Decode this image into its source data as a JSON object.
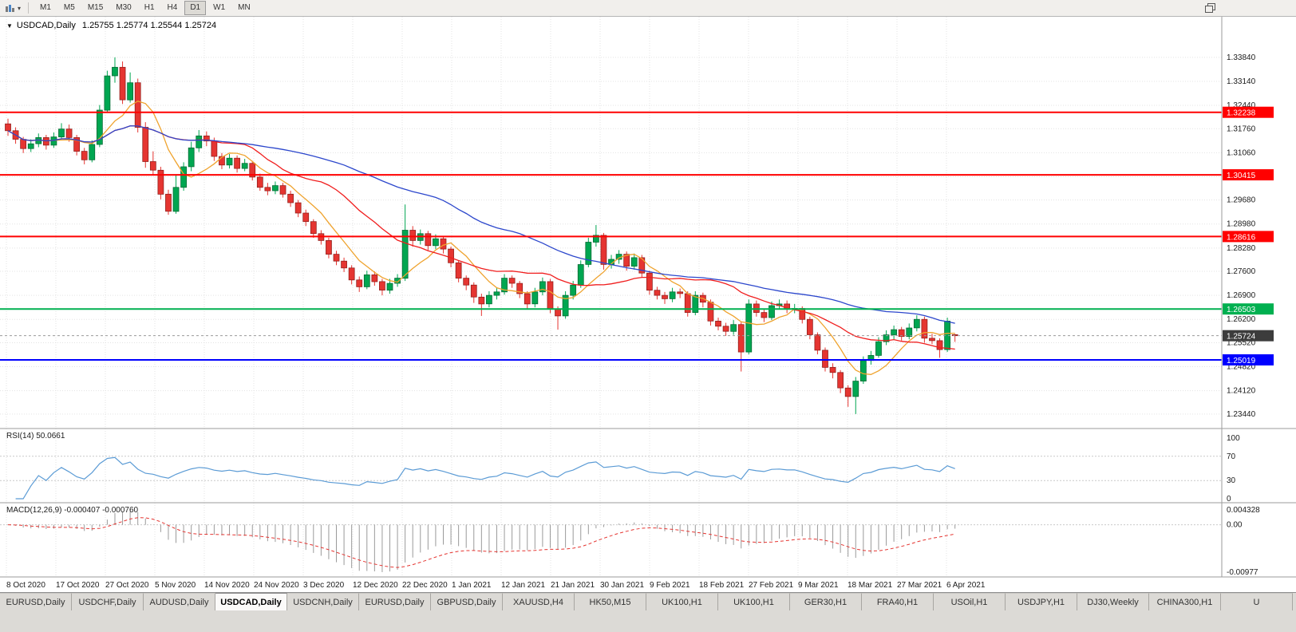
{
  "toolbar": {
    "timeframes": [
      {
        "label": "M1",
        "active": false
      },
      {
        "label": "M5",
        "active": false
      },
      {
        "label": "M15",
        "active": false
      },
      {
        "label": "M30",
        "active": false
      },
      {
        "label": "H1",
        "active": false
      },
      {
        "label": "H4",
        "active": false
      },
      {
        "label": "D1",
        "active": true
      },
      {
        "label": "W1",
        "active": false
      },
      {
        "label": "MN",
        "active": false
      }
    ]
  },
  "chart": {
    "window_menu_icon": "▼",
    "symbol": "USDCAD,Daily",
    "ohlc_text": "1.25755 1.25774 1.25544 1.25724",
    "levels": [
      {
        "price": 1.32238,
        "label": "1.32238",
        "color": "#ff0000"
      },
      {
        "price": 1.30415,
        "label": "1.30415",
        "color": "#ff0000"
      },
      {
        "price": 1.28616,
        "label": "1.28616",
        "color": "#ff0000"
      },
      {
        "price": 1.26503,
        "label": "1.26503",
        "color": "#00b050"
      },
      {
        "price": 1.25019,
        "label": "1.25019",
        "color": "#0000ff"
      }
    ],
    "current_price": {
      "value": 1.25724,
      "label": "1.25724",
      "color": "#3c3c3c"
    }
  },
  "chart_data": {
    "type": "candlestick",
    "symbol": "USDCAD",
    "timeframe": "Daily",
    "title": "USDCAD,Daily",
    "y_range": [
      1.2304,
      1.35
    ],
    "y_tick_labels": [
      "1.33840",
      "1.33140",
      "1.32440",
      "1.31760",
      "1.31060",
      "1.30360",
      "1.29680",
      "1.28980",
      "1.28280",
      "1.27600",
      "1.26900",
      "1.26200",
      "1.25520",
      "1.24820",
      "1.24120",
      "1.23440"
    ],
    "x_labels": [
      "8 Oct 2020",
      "17 Oct 2020",
      "27 Oct 2020",
      "5 Nov 2020",
      "14 Nov 2020",
      "24 Nov 2020",
      "3 Dec 2020",
      "12 Dec 2020",
      "22 Dec 2020",
      "1 Jan 2021",
      "12 Jan 2021",
      "21 Jan 2021",
      "30 Jan 2021",
      "9 Feb 2021",
      "18 Feb 2021",
      "27 Feb 2021",
      "9 Mar 2021",
      "18 Mar 2021",
      "27 Mar 2021",
      "6 Apr 2021"
    ],
    "moving_averages": [
      {
        "name": "fast-ma",
        "period": 7,
        "color": "#efa32e"
      },
      {
        "name": "medium-ma",
        "period": 20,
        "color": "#f01e1e"
      },
      {
        "name": "slow-ma",
        "period": 45,
        "color": "#2c47cc"
      }
    ],
    "candles": [
      [
        1.319,
        1.3205,
        1.3155,
        1.317
      ],
      [
        1.317,
        1.318,
        1.3132,
        1.3145
      ],
      [
        1.3145,
        1.3152,
        1.3105,
        1.3118
      ],
      [
        1.3118,
        1.3145,
        1.3108,
        1.3132
      ],
      [
        1.3132,
        1.3162,
        1.3122,
        1.315
      ],
      [
        1.315,
        1.3158,
        1.3115,
        1.3128
      ],
      [
        1.3128,
        1.3165,
        1.312,
        1.3152
      ],
      [
        1.3152,
        1.3192,
        1.3145,
        1.3175
      ],
      [
        1.3175,
        1.3188,
        1.3138,
        1.315
      ],
      [
        1.315,
        1.3158,
        1.3098,
        1.311
      ],
      [
        1.311,
        1.312,
        1.3072,
        1.3085
      ],
      [
        1.3085,
        1.3142,
        1.3078,
        1.313
      ],
      [
        1.313,
        1.3245,
        1.3122,
        1.323
      ],
      [
        1.323,
        1.3345,
        1.3222,
        1.333
      ],
      [
        1.333,
        1.3384,
        1.331,
        1.3355
      ],
      [
        1.3355,
        1.3372,
        1.3248,
        1.326
      ],
      [
        1.326,
        1.334,
        1.3252,
        1.331
      ],
      [
        1.331,
        1.3322,
        1.3165,
        1.318
      ],
      [
        1.318,
        1.3195,
        1.3062,
        1.308
      ],
      [
        1.308,
        1.311,
        1.304,
        1.3055
      ],
      [
        1.3055,
        1.3065,
        1.297,
        1.2985
      ],
      [
        1.2985,
        1.2998,
        1.2925,
        1.2935
      ],
      [
        1.2935,
        1.3042,
        1.2928,
        1.3005
      ],
      [
        1.3005,
        1.3078,
        1.2995,
        1.3065
      ],
      [
        1.3065,
        1.3138,
        1.3052,
        1.312
      ],
      [
        1.312,
        1.3172,
        1.3108,
        1.3155
      ],
      [
        1.3155,
        1.3168,
        1.3125,
        1.314
      ],
      [
        1.314,
        1.315,
        1.3082,
        1.3095
      ],
      [
        1.3095,
        1.3105,
        1.3058,
        1.307
      ],
      [
        1.307,
        1.3102,
        1.306,
        1.309
      ],
      [
        1.309,
        1.3098,
        1.3048,
        1.306
      ],
      [
        1.306,
        1.3088,
        1.3052,
        1.3075
      ],
      [
        1.3075,
        1.3082,
        1.3025,
        1.3035
      ],
      [
        1.3035,
        1.3045,
        1.2995,
        1.3005
      ],
      [
        1.3005,
        1.3018,
        1.2982,
        1.2995
      ],
      [
        1.2995,
        1.3022,
        1.2985,
        1.301
      ],
      [
        1.301,
        1.3018,
        1.2975,
        1.2985
      ],
      [
        1.2985,
        1.2995,
        1.2948,
        1.296
      ],
      [
        1.296,
        1.2968,
        1.2918,
        1.293
      ],
      [
        1.293,
        1.294,
        1.2892,
        1.2905
      ],
      [
        1.2905,
        1.2912,
        1.2858,
        1.287
      ],
      [
        1.287,
        1.288,
        1.2838,
        1.285
      ],
      [
        1.285,
        1.2858,
        1.2798,
        1.281
      ],
      [
        1.281,
        1.282,
        1.2778,
        1.279
      ],
      [
        1.279,
        1.28,
        1.2758,
        1.277
      ],
      [
        1.277,
        1.2778,
        1.2722,
        1.2735
      ],
      [
        1.2735,
        1.2745,
        1.27,
        1.2715
      ],
      [
        1.2715,
        1.2762,
        1.2708,
        1.275
      ],
      [
        1.275,
        1.276,
        1.2718,
        1.273
      ],
      [
        1.273,
        1.2738,
        1.269,
        1.2705
      ],
      [
        1.2705,
        1.2738,
        1.2695,
        1.2725
      ],
      [
        1.2725,
        1.2752,
        1.2715,
        1.274
      ],
      [
        1.274,
        1.2955,
        1.2732,
        1.288
      ],
      [
        1.288,
        1.2892,
        1.2832,
        1.285
      ],
      [
        1.285,
        1.2882,
        1.2838,
        1.287
      ],
      [
        1.287,
        1.2878,
        1.2822,
        1.2835
      ],
      [
        1.2835,
        1.2868,
        1.2825,
        1.2855
      ],
      [
        1.2855,
        1.2862,
        1.2812,
        1.2825
      ],
      [
        1.2825,
        1.2832,
        1.2772,
        1.2785
      ],
      [
        1.2785,
        1.2792,
        1.2728,
        1.274
      ],
      [
        1.274,
        1.2748,
        1.2705,
        1.272
      ],
      [
        1.272,
        1.2728,
        1.2668,
        1.2685
      ],
      [
        1.2685,
        1.2695,
        1.263,
        1.2665
      ],
      [
        1.2665,
        1.2702,
        1.2655,
        1.269
      ],
      [
        1.269,
        1.2712,
        1.2678,
        1.27
      ],
      [
        1.27,
        1.2752,
        1.2692,
        1.274
      ],
      [
        1.274,
        1.2748,
        1.2712,
        1.2725
      ],
      [
        1.2725,
        1.2732,
        1.2682,
        1.2695
      ],
      [
        1.2695,
        1.2702,
        1.2652,
        1.2665
      ],
      [
        1.2665,
        1.2712,
        1.2655,
        1.27
      ],
      [
        1.27,
        1.2742,
        1.269,
        1.273
      ],
      [
        1.273,
        1.2738,
        1.2638,
        1.265
      ],
      [
        1.265,
        1.2658,
        1.259,
        1.263
      ],
      [
        1.263,
        1.2702,
        1.2622,
        1.269
      ],
      [
        1.269,
        1.2732,
        1.2678,
        1.272
      ],
      [
        1.272,
        1.2792,
        1.2712,
        1.278
      ],
      [
        1.278,
        1.2858,
        1.2772,
        1.2845
      ],
      [
        1.2845,
        1.2895,
        1.2832,
        1.2865
      ],
      [
        1.2865,
        1.2872,
        1.2765,
        1.278
      ],
      [
        1.278,
        1.2808,
        1.2768,
        1.2795
      ],
      [
        1.2795,
        1.2822,
        1.2782,
        1.281
      ],
      [
        1.281,
        1.2818,
        1.2762,
        1.2775
      ],
      [
        1.2775,
        1.2812,
        1.2765,
        1.28
      ],
      [
        1.28,
        1.2808,
        1.2742,
        1.2755
      ],
      [
        1.2755,
        1.2762,
        1.2692,
        1.2705
      ],
      [
        1.2705,
        1.2715,
        1.2678,
        1.269
      ],
      [
        1.269,
        1.27,
        1.2665,
        1.268
      ],
      [
        1.268,
        1.2712,
        1.267,
        1.27
      ],
      [
        1.27,
        1.271,
        1.2682,
        1.2695
      ],
      [
        1.2695,
        1.2702,
        1.2628,
        1.264
      ],
      [
        1.264,
        1.2702,
        1.2632,
        1.269
      ],
      [
        1.269,
        1.2698,
        1.2655,
        1.267
      ],
      [
        1.267,
        1.2678,
        1.2602,
        1.2615
      ],
      [
        1.2615,
        1.2625,
        1.2588,
        1.26
      ],
      [
        1.26,
        1.261,
        1.2572,
        1.2585
      ],
      [
        1.2585,
        1.2618,
        1.2575,
        1.2605
      ],
      [
        1.2605,
        1.2612,
        1.2468,
        1.2525
      ],
      [
        1.2525,
        1.2678,
        1.2518,
        1.2665
      ],
      [
        1.2665,
        1.2675,
        1.2628,
        1.264
      ],
      [
        1.264,
        1.265,
        1.2612,
        1.2625
      ],
      [
        1.2625,
        1.2672,
        1.2618,
        1.266
      ],
      [
        1.266,
        1.2678,
        1.265,
        1.2665
      ],
      [
        1.2665,
        1.2675,
        1.2638,
        1.265
      ],
      [
        1.265,
        1.2665,
        1.2638,
        1.2652
      ],
      [
        1.2652,
        1.2658,
        1.2608,
        1.262
      ],
      [
        1.262,
        1.2628,
        1.2562,
        1.2575
      ],
      [
        1.2575,
        1.2582,
        1.2518,
        1.253
      ],
      [
        1.253,
        1.2538,
        1.2468,
        1.248
      ],
      [
        1.248,
        1.2492,
        1.2448,
        1.2465
      ],
      [
        1.2465,
        1.2472,
        1.2405,
        1.242
      ],
      [
        1.242,
        1.2428,
        1.2365,
        1.2395
      ],
      [
        1.2395,
        1.2452,
        1.2344,
        1.244
      ],
      [
        1.244,
        1.2512,
        1.2432,
        1.25
      ],
      [
        1.25,
        1.2528,
        1.2488,
        1.2515
      ],
      [
        1.2515,
        1.2568,
        1.2508,
        1.2555
      ],
      [
        1.2555,
        1.2588,
        1.2545,
        1.2575
      ],
      [
        1.2575,
        1.2602,
        1.2562,
        1.259
      ],
      [
        1.259,
        1.2598,
        1.2558,
        1.257
      ],
      [
        1.257,
        1.2608,
        1.2562,
        1.2595
      ],
      [
        1.2595,
        1.2632,
        1.2585,
        1.262
      ],
      [
        1.262,
        1.2628,
        1.2552,
        1.2565
      ],
      [
        1.2565,
        1.2578,
        1.2548,
        1.2558
      ],
      [
        1.2558,
        1.2565,
        1.2508,
        1.2532
      ],
      [
        1.2532,
        1.2625,
        1.2525,
        1.2615
      ],
      [
        1.25755,
        1.25774,
        1.25544,
        1.25724
      ]
    ],
    "colors": {
      "up": "#00a651",
      "down": "#e53531",
      "grid": "#e3e3e3"
    }
  },
  "rsi": {
    "label": "RSI(14) 50.0661",
    "period": 14,
    "value": "50.0661",
    "axis": [
      "100",
      "70",
      "30",
      "0"
    ],
    "color": "#5b9bd5"
  },
  "macd": {
    "label": "MACD(12,26,9) -0.000407 -0.000760",
    "values_text": "-0.000407 -0.000760",
    "axis": [
      "0.004328",
      "0.00",
      "-0.00977"
    ],
    "histogram_color": "#9a9a9a",
    "signal_color": "#e53531"
  },
  "tabs": [
    {
      "label": "EURUSD,Daily",
      "active": false
    },
    {
      "label": "USDCHF,Daily",
      "active": false
    },
    {
      "label": "AUDUSD,Daily",
      "active": false
    },
    {
      "label": "USDCAD,Daily",
      "active": true
    },
    {
      "label": "USDCNH,Daily",
      "active": false
    },
    {
      "label": "EURUSD,Daily",
      "active": false
    },
    {
      "label": "GBPUSD,Daily",
      "active": false
    },
    {
      "label": "XAUUSD,H4",
      "active": false
    },
    {
      "label": "HK50,M15",
      "active": false
    },
    {
      "label": "UK100,H1",
      "active": false
    },
    {
      "label": "UK100,H1",
      "active": false
    },
    {
      "label": "GER30,H1",
      "active": false
    },
    {
      "label": "FRA40,H1",
      "active": false
    },
    {
      "label": "USOil,H1",
      "active": false
    },
    {
      "label": "USDJPY,H1",
      "active": false
    },
    {
      "label": "DJ30,Weekly",
      "active": false
    },
    {
      "label": "CHINA300,H1",
      "active": false
    },
    {
      "label": "U",
      "active": false
    }
  ]
}
